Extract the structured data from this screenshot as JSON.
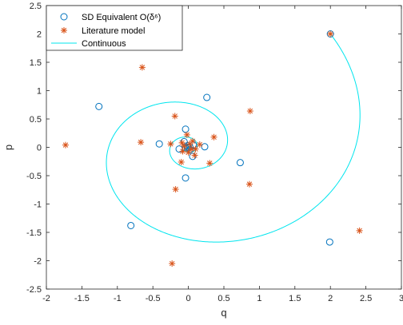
{
  "chart_data": {
    "type": "scatter",
    "title": "",
    "xlabel": "q",
    "ylabel": "p",
    "xlim": [
      -2,
      3
    ],
    "ylim": [
      -2.5,
      2.5
    ],
    "xticks": [
      -2,
      -1.5,
      -1,
      -0.5,
      0,
      0.5,
      1,
      1.5,
      2,
      2.5,
      3
    ],
    "yticks": [
      -2.5,
      -2,
      -1.5,
      -1,
      -0.5,
      0,
      0.5,
      1,
      1.5,
      2,
      2.5
    ],
    "xtick_labels": [
      "-2",
      "-1.5",
      "-1",
      "-0.5",
      "0",
      "0.5",
      "1",
      "1.5",
      "2",
      "2.5",
      "3"
    ],
    "ytick_labels": [
      "-2.5",
      "-2",
      "-1.5",
      "-1",
      "-0.5",
      "0",
      "0.5",
      "1",
      "1.5",
      "2",
      "2.5"
    ],
    "grid": false,
    "legend_position": "top-left",
    "series": [
      {
        "name": "SD Equivalent O(δ⁶)",
        "marker": "circle",
        "color": "#0072BD",
        "points": [
          [
            2.0,
            2.0
          ],
          [
            1.99,
            -1.67
          ],
          [
            -0.81,
            -1.38
          ],
          [
            -1.26,
            0.72
          ],
          [
            0.26,
            0.88
          ],
          [
            0.73,
            -0.27
          ],
          [
            -0.04,
            -0.54
          ],
          [
            -0.41,
            0.06
          ],
          [
            -0.04,
            0.32
          ],
          [
            0.23,
            0.01
          ],
          [
            0.06,
            -0.16
          ],
          [
            -0.13,
            -0.03
          ],
          [
            -0.06,
            0.1
          ],
          [
            0.07,
            0.04
          ],
          [
            0.02,
            -0.04
          ],
          [
            -0.04,
            -0.01
          ],
          [
            -0.01,
            0.03
          ],
          [
            0.02,
            0.01
          ],
          [
            0.0,
            -0.01
          ],
          [
            -0.01,
            0.0
          ]
        ]
      },
      {
        "name": "Literature model",
        "marker": "asterisk",
        "color": "#D95319",
        "points": [
          [
            2.0,
            2.0
          ],
          [
            2.41,
            -1.47
          ],
          [
            -0.23,
            -2.05
          ],
          [
            -1.73,
            0.04
          ],
          [
            -0.65,
            1.41
          ],
          [
            0.87,
            0.64
          ],
          [
            0.86,
            -0.65
          ],
          [
            -0.18,
            -0.74
          ],
          [
            -0.67,
            0.09
          ],
          [
            -0.19,
            0.55
          ],
          [
            0.36,
            0.18
          ],
          [
            0.3,
            -0.28
          ],
          [
            -0.1,
            -0.26
          ],
          [
            -0.25,
            0.06
          ],
          [
            -0.02,
            0.22
          ],
          [
            0.16,
            0.05
          ],
          [
            0.09,
            -0.14
          ],
          [
            -0.08,
            -0.07
          ],
          [
            -0.09,
            0.08
          ],
          [
            0.06,
            0.11
          ],
          [
            0.1,
            -0.03
          ],
          [
            0.0,
            -0.09
          ],
          [
            -0.06,
            0.02
          ],
          [
            0.02,
            0.06
          ],
          [
            0.04,
            -0.03
          ]
        ]
      },
      {
        "name": "Continuous",
        "marker": "line",
        "color": "#00E5EE",
        "curve": "logarithmic spiral from (2, 2) into the origin"
      }
    ]
  }
}
